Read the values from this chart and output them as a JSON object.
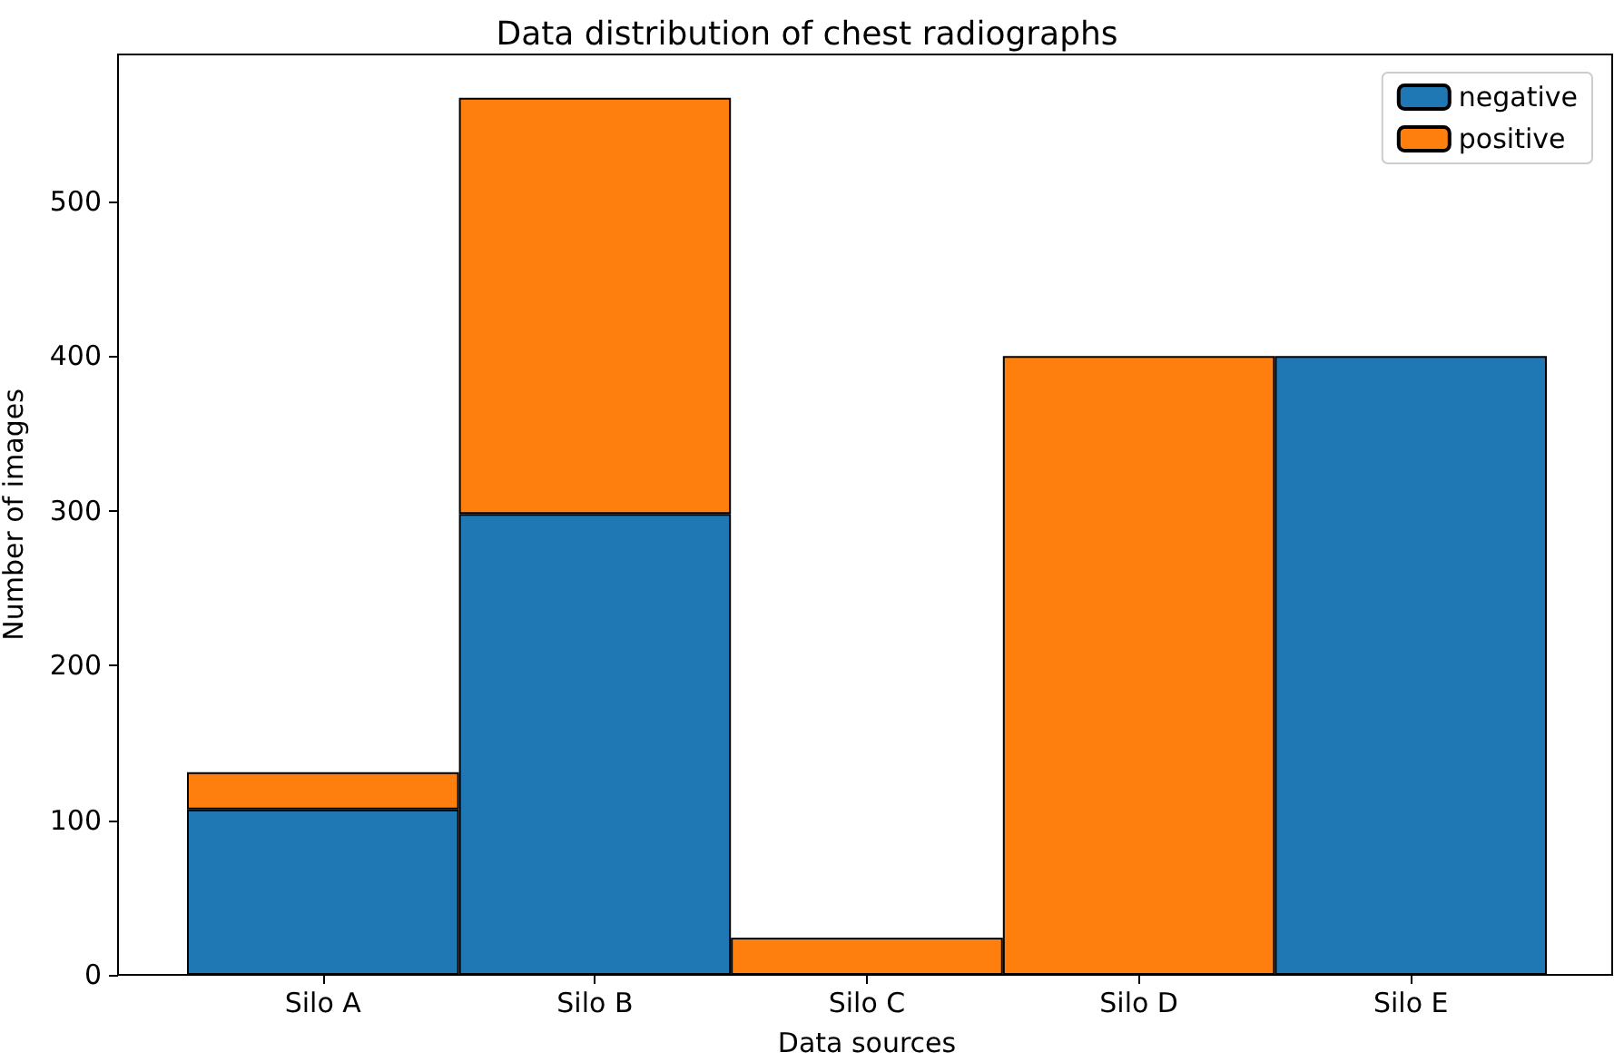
{
  "chart_data": {
    "type": "bar",
    "title": "Data distribution of chest radiographs",
    "xlabel": "Data sources",
    "ylabel": "Number of images",
    "categories": [
      "Silo A",
      "Silo B",
      "Silo C",
      "Silo D",
      "Silo E"
    ],
    "series": [
      {
        "name": "negative",
        "color": "#1f77b4",
        "values": [
          107,
          298,
          0,
          0,
          400
        ]
      },
      {
        "name": "positive",
        "color": "#ff7f0e",
        "values": [
          24,
          269,
          24,
          400,
          0
        ]
      }
    ],
    "stacked": true,
    "ylim": [
      0,
      595
    ],
    "yticks": [
      0,
      100,
      200,
      300,
      400,
      500
    ],
    "grid": false,
    "legend": "top right"
  }
}
